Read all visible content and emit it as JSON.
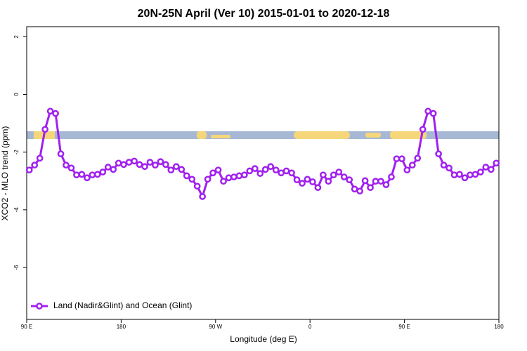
{
  "chart_data": {
    "type": "line",
    "title": "20N-25N April (Ver 10)   2015-01-01 to 2020-12-18",
    "x_label": "Longitude (deg E)",
    "y_label": "XCO2 - MLO trend (ppm)",
    "xlim": [
      90,
      540
    ],
    "xticks": [
      {
        "value": 90,
        "label": "90 E"
      },
      {
        "value": 180,
        "label": "180"
      },
      {
        "value": 270,
        "label": "90 W"
      },
      {
        "value": 360,
        "label": "0"
      },
      {
        "value": 450,
        "label": "90 E"
      },
      {
        "value": 540,
        "label": "180"
      }
    ],
    "ylim": [
      -7.8,
      2.35
    ],
    "yticks": [
      2,
      0,
      -2,
      -4,
      -6
    ],
    "legend": "bottomleft",
    "series": [
      {
        "name": "Land (Nadir&Glint) and Ocean (Glint)",
        "color": "#a020f0",
        "x": [
          92.5,
          97.5,
          102.5,
          107.5,
          112.5,
          117.5,
          122.5,
          127.5,
          132.5,
          137.5,
          142.5,
          147.5,
          152.5,
          157.5,
          162.5,
          167.5,
          172.5,
          177.5,
          182.5,
          187.5,
          192.5,
          197.5,
          202.5,
          207.5,
          212.5,
          217.5,
          222.5,
          227.5,
          232.5,
          237.5,
          242.5,
          247.5,
          252.5,
          257.5,
          262.5,
          267.5,
          272.5,
          277.5,
          282.5,
          287.5,
          292.5,
          297.5,
          302.5,
          307.5,
          312.5,
          317.5,
          322.5,
          327.5,
          332.5,
          337.5,
          342.5,
          347.5,
          352.5,
          357.5,
          362.5,
          367.5,
          372.5,
          377.5,
          382.5,
          387.5,
          392.5,
          397.5,
          402.5,
          407.5,
          412.5,
          417.5,
          422.5,
          427.5,
          432.5,
          437.5,
          442.5,
          447.5,
          452.5,
          457.5,
          462.5,
          467.5,
          472.5,
          477.5,
          482.5,
          487.5,
          492.5,
          497.5,
          502.5,
          507.5,
          512.5,
          517.5,
          522.5,
          527.5,
          532.5,
          537.5
        ],
        "values": [
          -2.62,
          -2.45,
          -2.21,
          -1.21,
          -0.58,
          -0.66,
          -2.06,
          -2.45,
          -2.55,
          -2.79,
          -2.77,
          -2.89,
          -2.79,
          -2.77,
          -2.69,
          -2.52,
          -2.6,
          -2.38,
          -2.43,
          -2.35,
          -2.31,
          -2.43,
          -2.5,
          -2.35,
          -2.45,
          -2.33,
          -2.43,
          -2.62,
          -2.5,
          -2.6,
          -2.82,
          -2.94,
          -3.18,
          -3.54,
          -2.94,
          -2.72,
          -2.62,
          -3.01,
          -2.89,
          -2.86,
          -2.82,
          -2.79,
          -2.65,
          -2.57,
          -2.74,
          -2.6,
          -2.5,
          -2.62,
          -2.72,
          -2.65,
          -2.72,
          -2.96,
          -3.08,
          -2.94,
          -3.03,
          -3.23,
          -2.79,
          -3.01,
          -2.79,
          -2.69,
          -2.86,
          -2.96,
          -3.28,
          -3.35,
          -2.99,
          -3.23,
          -3.01,
          -3.01,
          -3.13,
          -2.86,
          -2.23,
          -2.23,
          -2.62,
          -2.45,
          -2.21,
          -1.21,
          -0.58,
          -0.66,
          -2.06,
          -2.45,
          -2.55,
          -2.79,
          -2.77,
          -2.89,
          -2.79,
          -2.77,
          -2.69,
          -2.52,
          -2.6,
          -2.38
        ]
      }
    ]
  }
}
